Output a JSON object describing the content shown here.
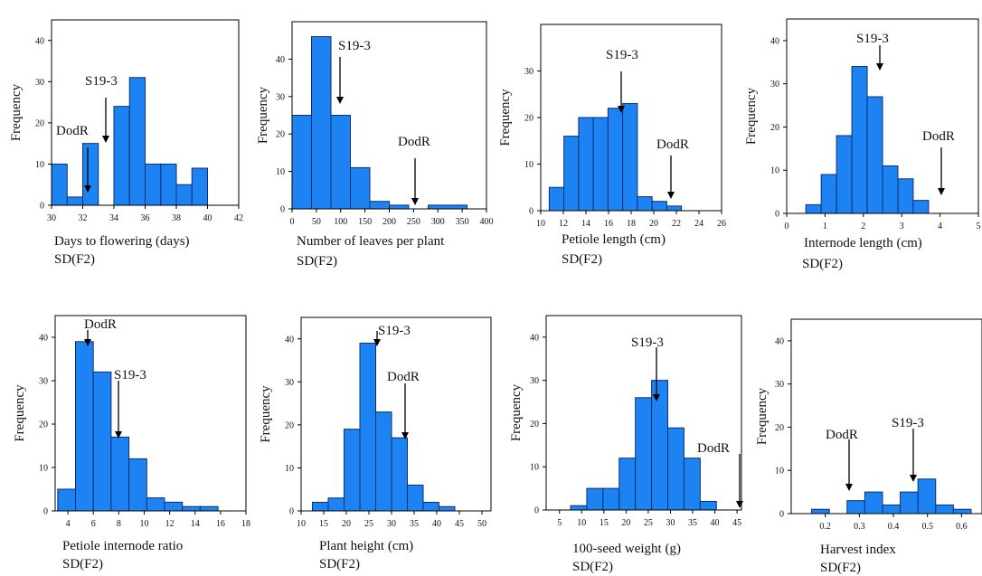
{
  "style": {
    "bar_fill": "#1e83f2",
    "bar_stroke": "#0a2f75",
    "frame": "#000000"
  },
  "chart_data": [
    {
      "type": "bar",
      "xlabel": "Days to flowering (days)",
      "ylabel": "Frequency",
      "footer": "SD(F2)",
      "xlim": [
        30,
        42
      ],
      "ylim": [
        0,
        45
      ],
      "xticks": [
        30,
        32,
        34,
        36,
        38,
        40,
        42
      ],
      "yticks": [
        0,
        10,
        20,
        30,
        40
      ],
      "bins": [
        [
          30,
          31,
          10
        ],
        [
          31,
          32,
          2
        ],
        [
          32,
          33,
          15
        ],
        [
          34,
          35,
          24
        ],
        [
          35,
          36,
          31
        ],
        [
          36,
          37,
          10
        ],
        [
          37,
          38,
          10
        ],
        [
          38,
          39,
          5
        ],
        [
          39,
          40,
          9
        ]
      ],
      "bin_x_offset": 31,
      "annotations": [
        {
          "label": "DodR",
          "x": 32
        },
        {
          "label": "S19-3",
          "x": 33.2
        }
      ]
    },
    {
      "type": "bar",
      "xlabel": "Number of leaves per plant",
      "ylabel": "Frequency",
      "footer": "SD(F2)",
      "xlim": [
        0,
        400
      ],
      "ylim": [
        0,
        50
      ],
      "xticks": [
        0,
        50,
        100,
        150,
        200,
        250,
        300,
        350,
        400
      ],
      "yticks": [
        0,
        10,
        20,
        30,
        40
      ],
      "bins": [
        [
          0,
          40,
          25
        ],
        [
          40,
          80,
          46
        ],
        [
          80,
          120,
          25
        ],
        [
          120,
          160,
          11
        ],
        [
          160,
          200,
          2
        ],
        [
          200,
          240,
          1
        ],
        [
          280,
          360,
          1
        ]
      ],
      "annotations": [
        {
          "label": "S19-3",
          "x": 90
        },
        {
          "label": "DodR",
          "x": 265
        }
      ]
    },
    {
      "type": "bar",
      "xlabel": "Petiole length  (cm)",
      "ylabel": "Frequency",
      "footer": "SD(F2)",
      "xlim": [
        10,
        26
      ],
      "ylim": [
        0,
        40
      ],
      "xticks": [
        10,
        12,
        14,
        16,
        18,
        20,
        22,
        24,
        26
      ],
      "yticks": [
        0,
        10,
        20,
        30
      ],
      "bins": [
        [
          11,
          12,
          5
        ],
        [
          12,
          13,
          16
        ],
        [
          13,
          14,
          20
        ],
        [
          14,
          15,
          20
        ],
        [
          15,
          16,
          22
        ],
        [
          16,
          17,
          23
        ],
        [
          17,
          18,
          3
        ],
        [
          18,
          19,
          2
        ],
        [
          19,
          20,
          1
        ]
      ],
      "bin_x_offset": 10.75,
      "bin_width": 1.3,
      "annotations": [
        {
          "label": "S19-3",
          "x": 17
        },
        {
          "label": "DodR",
          "x": 21.3
        }
      ]
    },
    {
      "type": "bar",
      "xlabel": "Internode length (cm)",
      "ylabel": "Frequency",
      "footer": "SD(F2)",
      "xlim": [
        0,
        5
      ],
      "ylim": [
        0,
        45
      ],
      "xticks": [
        0,
        1,
        2,
        3,
        4,
        5
      ],
      "yticks": [
        0,
        10,
        20,
        30,
        40
      ],
      "bins": [
        [
          0.5,
          0.9,
          2
        ],
        [
          0.9,
          1.3,
          9
        ],
        [
          1.3,
          1.7,
          18
        ],
        [
          1.7,
          2.1,
          34
        ],
        [
          2.1,
          2.5,
          27
        ],
        [
          2.5,
          2.9,
          11
        ],
        [
          2.9,
          3.3,
          8
        ],
        [
          3.3,
          3.7,
          3
        ]
      ],
      "annotations": [
        {
          "label": "S19-3",
          "x": 2.4
        },
        {
          "label": "DodR",
          "x": 4.1
        }
      ]
    },
    {
      "type": "bar",
      "xlabel": "Petiole internode ratio",
      "ylabel": "Frequency",
      "footer": "SD(F2)",
      "xlim": [
        3,
        18
      ],
      "ylim": [
        0,
        45
      ],
      "xticks": [
        4,
        6,
        8,
        10,
        12,
        14,
        16,
        18
      ],
      "yticks": [
        0,
        10,
        20,
        30,
        40
      ],
      "bins": [
        [
          3.2,
          4.6,
          5
        ],
        [
          4.6,
          6,
          39
        ],
        [
          6,
          7.4,
          32
        ],
        [
          7.4,
          8.8,
          17
        ],
        [
          8.8,
          10.2,
          12
        ],
        [
          10.2,
          11.6,
          3
        ],
        [
          11.6,
          13,
          2
        ],
        [
          13,
          14.4,
          1
        ],
        [
          14.4,
          15.8,
          1
        ]
      ],
      "annotations": [
        {
          "label": "DodR",
          "x": 5.2
        },
        {
          "label": "S19-3",
          "x": 7.8
        }
      ]
    },
    {
      "type": "bar",
      "xlabel": "Plant height (cm)",
      "ylabel": "Frequency",
      "footer": "SD(F2)",
      "xlim": [
        10,
        52
      ],
      "ylim": [
        0,
        45
      ],
      "xticks": [
        10,
        15,
        20,
        25,
        30,
        35,
        40,
        45,
        50
      ],
      "yticks": [
        0,
        10,
        20,
        30,
        40
      ],
      "bins": [
        [
          12,
          15,
          2
        ],
        [
          15,
          18,
          3
        ],
        [
          18,
          21,
          19
        ],
        [
          21,
          24,
          39
        ],
        [
          24,
          27,
          23
        ],
        [
          27,
          30,
          17
        ],
        [
          30,
          33,
          6
        ],
        [
          33,
          36,
          2
        ],
        [
          36,
          39,
          1
        ]
      ],
      "bin_x_offset": 12.5,
      "bin_width": 3.5,
      "annotations": [
        {
          "label": "S19-3",
          "x": 26.5
        },
        {
          "label": "DodR",
          "x": 34
        }
      ]
    },
    {
      "type": "bar",
      "xlabel": "100-seed weight  (g)",
      "ylabel": "Frequency",
      "footer": "SD(F2)",
      "xlim": [
        2,
        46
      ],
      "ylim": [
        0,
        45
      ],
      "xticks": [
        5,
        10,
        15,
        20,
        25,
        30,
        35,
        40,
        45
      ],
      "yticks": [
        0,
        10,
        20,
        30,
        40
      ],
      "bins": [
        [
          8,
          10.7,
          1
        ],
        [
          10.7,
          13.4,
          5
        ],
        [
          13.4,
          16.1,
          5
        ],
        [
          16.1,
          18.8,
          12
        ],
        [
          18.8,
          21.5,
          26
        ],
        [
          21.5,
          24.2,
          30
        ],
        [
          24.2,
          26.9,
          19
        ],
        [
          26.9,
          29.6,
          12
        ],
        [
          29.6,
          32.3,
          2
        ]
      ],
      "bin_x_offset": 7.5,
      "bin_width": 3.65,
      "annotations": [
        {
          "label": "S19-3",
          "x": 27
        },
        {
          "label": "DodR",
          "x": 45
        }
      ]
    },
    {
      "type": "bar",
      "xlabel": "Harvest index",
      "ylabel": "Frequency",
      "footer": "SD(F2)",
      "xlim": [
        0.1,
        0.66
      ],
      "ylim": [
        0,
        45
      ],
      "xticks": [
        0.2,
        0.3,
        0.4,
        0.5,
        0.6
      ],
      "yticks": [
        0,
        10,
        20,
        30,
        40
      ],
      "bins": [
        [
          0.15,
          0.2,
          1
        ],
        [
          0.2,
          0.25,
          0
        ],
        [
          0.25,
          0.3,
          3
        ],
        [
          0.3,
          0.35,
          5
        ],
        [
          0.35,
          0.4,
          2
        ],
        [
          0.4,
          0.45,
          5
        ],
        [
          0.45,
          0.5,
          8
        ],
        [
          0.5,
          0.55,
          2
        ],
        [
          0.55,
          0.6,
          1
        ]
      ],
      "bin_x_offset": 0.16,
      "bin_width": 0.052,
      "annotations": [
        {
          "label": "DodR",
          "x": 0.28
        },
        {
          "label": "S19-3",
          "x": 0.475
        }
      ]
    }
  ]
}
